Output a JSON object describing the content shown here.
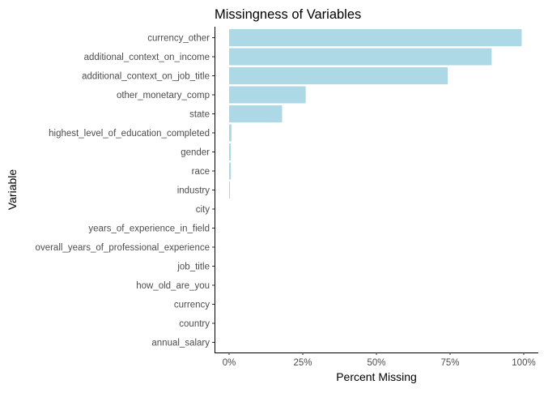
{
  "chart_data": {
    "type": "bar",
    "orientation": "horizontal",
    "title": "Missingness of Variables",
    "xlabel": "Percent Missing",
    "ylabel": "Variable",
    "xlim": [
      0,
      100
    ],
    "x_ticks": [
      0,
      25,
      50,
      75,
      100
    ],
    "x_tick_labels": [
      "0%",
      "25%",
      "50%",
      "75%",
      "100%"
    ],
    "grid": false,
    "legend": "none",
    "bar_color": "#add8e6",
    "categories": [
      "currency_other",
      "additional_context_on_income",
      "additional_context_on_job_title",
      "other_monetary_comp",
      "state",
      "highest_level_of_education_completed",
      "gender",
      "race",
      "industry",
      "city",
      "years_of_experience_in_field",
      "overall_years_of_professional_experience",
      "job_title",
      "how_old_are_you",
      "currency",
      "country",
      "annual_salary"
    ],
    "values": [
      99.3,
      89.1,
      74.2,
      26.0,
      18.0,
      0.8,
      0.6,
      0.6,
      0.3,
      0.01,
      0,
      0,
      0,
      0,
      0,
      0,
      0
    ]
  }
}
